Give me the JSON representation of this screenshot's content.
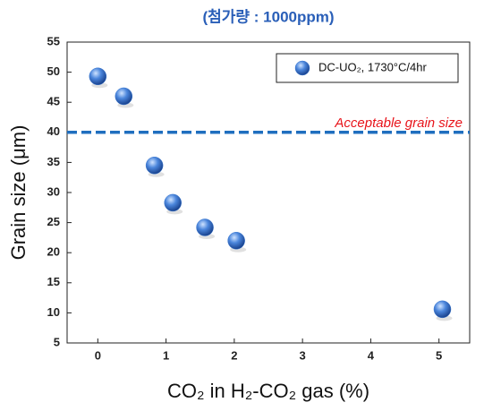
{
  "chart_data": {
    "type": "scatter",
    "title": "(첨가량 : 1000ppm)",
    "x_label": "CO₂ in H₂-CO₂ gas (%)",
    "y_label": "Grain size (μm)",
    "series": [
      {
        "name": "DC-UO₂, 1730°C/4hr",
        "color": "#3a78d0",
        "x": [
          0,
          0.38,
          0.83,
          1.1,
          1.57,
          2.03,
          5.05
        ],
        "values": [
          49.3,
          46,
          34.5,
          28.3,
          24.2,
          22,
          10.6
        ]
      }
    ],
    "reference_line": {
      "value": 40,
      "label": "Acceptable grain size",
      "color": "#1f6fbf",
      "label_color": "#e8141b"
    },
    "xlim": [
      -0.45,
      5.45
    ],
    "xticks": [
      0,
      1,
      2,
      3,
      4,
      5
    ],
    "ylim": [
      5,
      55
    ],
    "yticks": [
      5,
      10,
      15,
      20,
      25,
      30,
      35,
      40,
      45,
      50,
      55
    ],
    "legend": "upper right"
  }
}
